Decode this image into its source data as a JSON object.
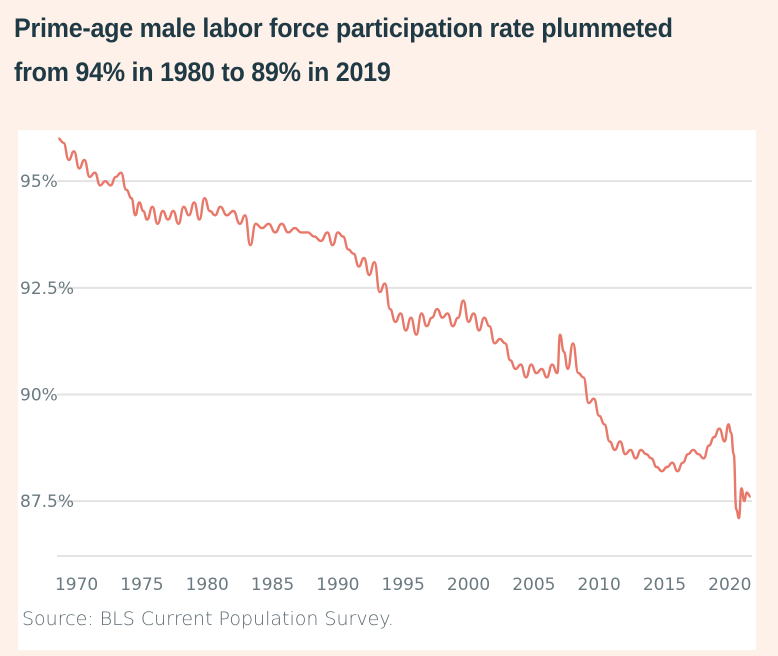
{
  "header": {
    "title": "Prime-age male labor force participation rate plummeted from 94% in 1980 to 89% in 2019"
  },
  "footer": {
    "source": "Source: BLS Current Population Survey."
  },
  "colors": {
    "line": "#e8786a",
    "grid": "#e3e3e3",
    "text": "#1f3a44",
    "axis_text": "#6b7a80",
    "background": "#fdf1ea"
  },
  "chart_data": {
    "type": "line",
    "title": "Prime-age male labor force participation rate plummeted from 94% in 1980 to 89% in 2019",
    "xlabel": "",
    "ylabel": "",
    "xlim": [
      1968.5,
      2021.7
    ],
    "ylim": [
      86.4,
      96.2
    ],
    "grid": true,
    "y_ticks": [
      95,
      92.5,
      90,
      87.5
    ],
    "y_tick_labels": [
      "95%",
      "92.5%",
      "90%",
      "87.5%"
    ],
    "x_ticks": [
      1970,
      1975,
      1980,
      1985,
      1990,
      1995,
      2000,
      2005,
      2010,
      2015,
      2020
    ],
    "x_tick_labels": [
      "1970",
      "1975",
      "1980",
      "1985",
      "1990",
      "1995",
      "2000",
      "2005",
      "2010",
      "2015",
      "2020"
    ],
    "series": [
      {
        "x": [
          1968.6,
          1969.0,
          1969.4,
          1969.8,
          1970.2,
          1970.6,
          1971.0,
          1971.4,
          1971.8,
          1972.2,
          1972.6,
          1973.0,
          1973.4,
          1973.8,
          1974.2,
          1974.5,
          1974.8,
          1975.1,
          1975.4,
          1975.8,
          1976.2,
          1976.6,
          1977.0,
          1977.4,
          1977.8,
          1978.2,
          1978.6,
          1979.0,
          1979.4,
          1979.8,
          1980.2,
          1980.6,
          1981.0,
          1981.5,
          1982.0,
          1982.5,
          1982.9,
          1983.3,
          1983.7,
          1984.2,
          1984.7,
          1985.2,
          1985.7,
          1986.2,
          1986.7,
          1987.2,
          1987.7,
          1988.2,
          1988.7,
          1989.2,
          1989.6,
          1990.0,
          1990.4,
          1990.8,
          1991.2,
          1991.6,
          1992.0,
          1992.4,
          1992.8,
          1993.2,
          1993.6,
          1994.0,
          1994.4,
          1994.8,
          1995.2,
          1995.6,
          1996.0,
          1996.4,
          1996.8,
          1997.2,
          1997.6,
          1998.0,
          1998.4,
          1998.8,
          1999.2,
          1999.6,
          2000.0,
          2000.4,
          2000.8,
          2001.2,
          2001.6,
          2002.0,
          2002.4,
          2002.8,
          2003.2,
          2003.6,
          2004.0,
          2004.4,
          2004.8,
          2005.2,
          2005.6,
          2006.0,
          2006.4,
          2006.8,
          2007.0,
          2007.3,
          2007.6,
          2008.0,
          2008.4,
          2008.8,
          2009.2,
          2009.6,
          2010.0,
          2010.4,
          2010.8,
          2011.2,
          2011.6,
          2012.0,
          2012.4,
          2012.8,
          2013.2,
          2013.6,
          2014.0,
          2014.4,
          2014.8,
          2015.2,
          2015.6,
          2016.0,
          2016.4,
          2016.8,
          2017.2,
          2017.6,
          2018.0,
          2018.4,
          2018.8,
          2019.2,
          2019.6,
          2019.9,
          2020.1,
          2020.3,
          2020.5,
          2020.7,
          2020.9,
          2021.1,
          2021.3,
          2021.6
        ],
        "values": [
          96.0,
          95.9,
          95.5,
          95.7,
          95.3,
          95.5,
          95.1,
          95.2,
          94.9,
          95.0,
          94.9,
          95.1,
          95.2,
          94.8,
          94.6,
          94.2,
          94.5,
          94.3,
          94.1,
          94.4,
          94.0,
          94.3,
          94.1,
          94.3,
          94.0,
          94.4,
          94.2,
          94.5,
          94.1,
          94.6,
          94.3,
          94.2,
          94.4,
          94.2,
          94.3,
          94.0,
          94.2,
          93.5,
          94.0,
          93.9,
          94.0,
          93.8,
          94.0,
          93.8,
          93.9,
          93.8,
          93.8,
          93.7,
          93.6,
          93.8,
          93.5,
          93.8,
          93.7,
          93.4,
          93.3,
          93.0,
          93.2,
          92.8,
          93.1,
          92.4,
          92.6,
          92.0,
          91.7,
          91.9,
          91.5,
          91.8,
          91.4,
          91.9,
          91.6,
          91.8,
          92.0,
          91.8,
          91.9,
          91.6,
          91.8,
          92.2,
          91.7,
          91.9,
          91.5,
          91.8,
          91.6,
          91.2,
          91.3,
          91.2,
          90.8,
          90.6,
          90.7,
          90.4,
          90.7,
          90.5,
          90.6,
          90.4,
          90.7,
          90.5,
          91.4,
          91.0,
          90.6,
          91.2,
          90.5,
          90.4,
          89.8,
          89.9,
          89.5,
          89.3,
          88.9,
          88.7,
          88.9,
          88.6,
          88.7,
          88.5,
          88.7,
          88.6,
          88.5,
          88.3,
          88.2,
          88.3,
          88.4,
          88.2,
          88.4,
          88.6,
          88.7,
          88.6,
          88.5,
          88.8,
          89.0,
          89.2,
          88.9,
          89.3,
          89.1,
          88.6,
          87.3,
          87.1,
          87.8,
          87.5,
          87.7,
          87.6
        ]
      }
    ]
  }
}
